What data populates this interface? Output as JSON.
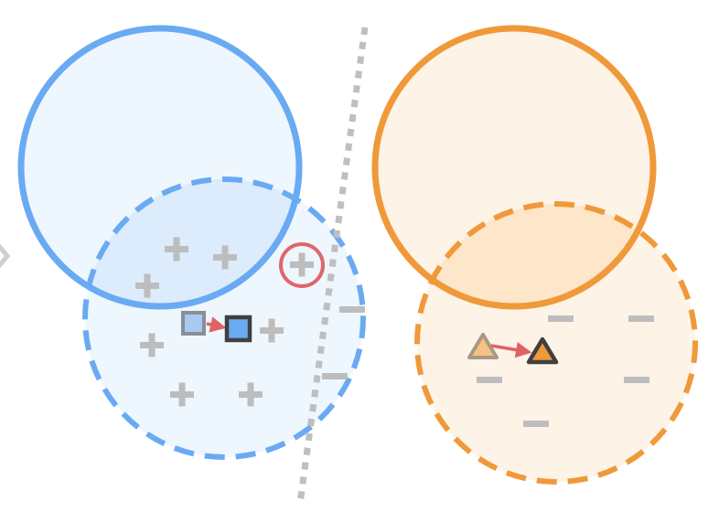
{
  "colors": {
    "blue_stroke": "#6aaaf3",
    "blue_fill": "#eef6fe",
    "blue_overlap": "#dcecfc",
    "orange_stroke": "#f0993a",
    "orange_fill": "#fdf3e6",
    "orange_overlap": "#fde6c9",
    "marker_gray": "#bdbdbd",
    "separator_gray": "#bfbfbf",
    "highlight_red": "#e0656b",
    "arrow_red": "#e06262",
    "square_old_fill": "#a9c9f2",
    "square_new_fill": "#6aaaf3",
    "triangle_old_fill": "#f6c184",
    "triangle_new_fill": "#f0993a",
    "dark_outline": "#3f3f3f"
  },
  "icons": {
    "positive": "plus-icon",
    "negative": "minus-icon",
    "prototype_old": "square-icon",
    "prototype_new": "square-icon",
    "triangle_old": "triangle-icon",
    "triangle_new": "triangle-icon",
    "highlight": "circle-icon",
    "shift": "arrow-icon"
  }
}
